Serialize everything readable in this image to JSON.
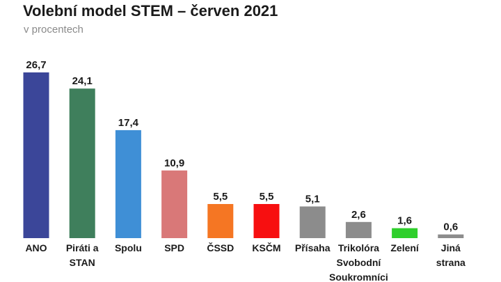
{
  "title": "Volební model STEM – červen 2021",
  "subtitle": "v procentech",
  "chart_data": {
    "type": "bar",
    "title": "Volební model STEM – červen 2021",
    "subtitle": "v procentech",
    "xlabel": "",
    "ylabel": "",
    "ylim": [
      0,
      26.7
    ],
    "grid": false,
    "categories": [
      "ANO",
      "Piráti a STAN",
      "Spolu",
      "SPD",
      "ČSSD",
      "KSČM",
      "Přísaha",
      "Trikolóra Svobodní Soukromníci",
      "Zelení",
      "Jiná strana"
    ],
    "category_lines": [
      [
        "ANO"
      ],
      [
        "Piráti a",
        "STAN"
      ],
      [
        "Spolu"
      ],
      [
        "SPD"
      ],
      [
        "ČSSD"
      ],
      [
        "KSČM"
      ],
      [
        "Přísaha"
      ],
      [
        "Trikolóra",
        "Svobodní",
        "Soukromníci"
      ],
      [
        "Zelení"
      ],
      [
        "Jiná",
        "strana"
      ]
    ],
    "values": [
      26.7,
      24.1,
      17.4,
      10.9,
      5.5,
      5.5,
      5.1,
      2.6,
      1.6,
      0.6
    ],
    "value_labels": [
      "26,7",
      "24,1",
      "17,4",
      "10,9",
      "5,5",
      "5,5",
      "5,1",
      "2,6",
      "1,6",
      "0,6"
    ],
    "colors": [
      "#3b4699",
      "#3f7f5c",
      "#3f8fd6",
      "#d97878",
      "#f57623",
      "#f70f10",
      "#8c8c8c",
      "#8c8c8c",
      "#2fcf2c",
      "#8c8c8c"
    ]
  }
}
